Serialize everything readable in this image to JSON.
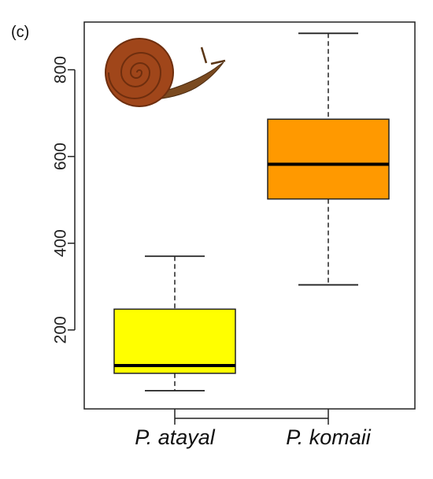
{
  "panel_label": "(c)",
  "chart_data": {
    "type": "box",
    "title": "",
    "xlabel": "",
    "ylabel": "",
    "categories": [
      "P. atayal",
      "P. komaii"
    ],
    "ylim": [
      18,
      910
    ],
    "yticks": [
      200,
      400,
      600,
      800
    ],
    "grid": false,
    "legend": "none",
    "series": [
      {
        "category": "P. atayal",
        "whisker_low": 60,
        "q1": 100,
        "median": 118,
        "q3": 248,
        "whisker_high": 370,
        "fill": "#ffff00"
      },
      {
        "category": "P. komaii",
        "whisker_low": 304,
        "q1": 502,
        "median": 582,
        "q3": 686,
        "whisker_high": 884,
        "fill": "#ff9900"
      }
    ]
  },
  "illustration": {
    "icon": "snail-icon",
    "shell_color": "#a0461a",
    "body_color": "#7a4a20"
  }
}
